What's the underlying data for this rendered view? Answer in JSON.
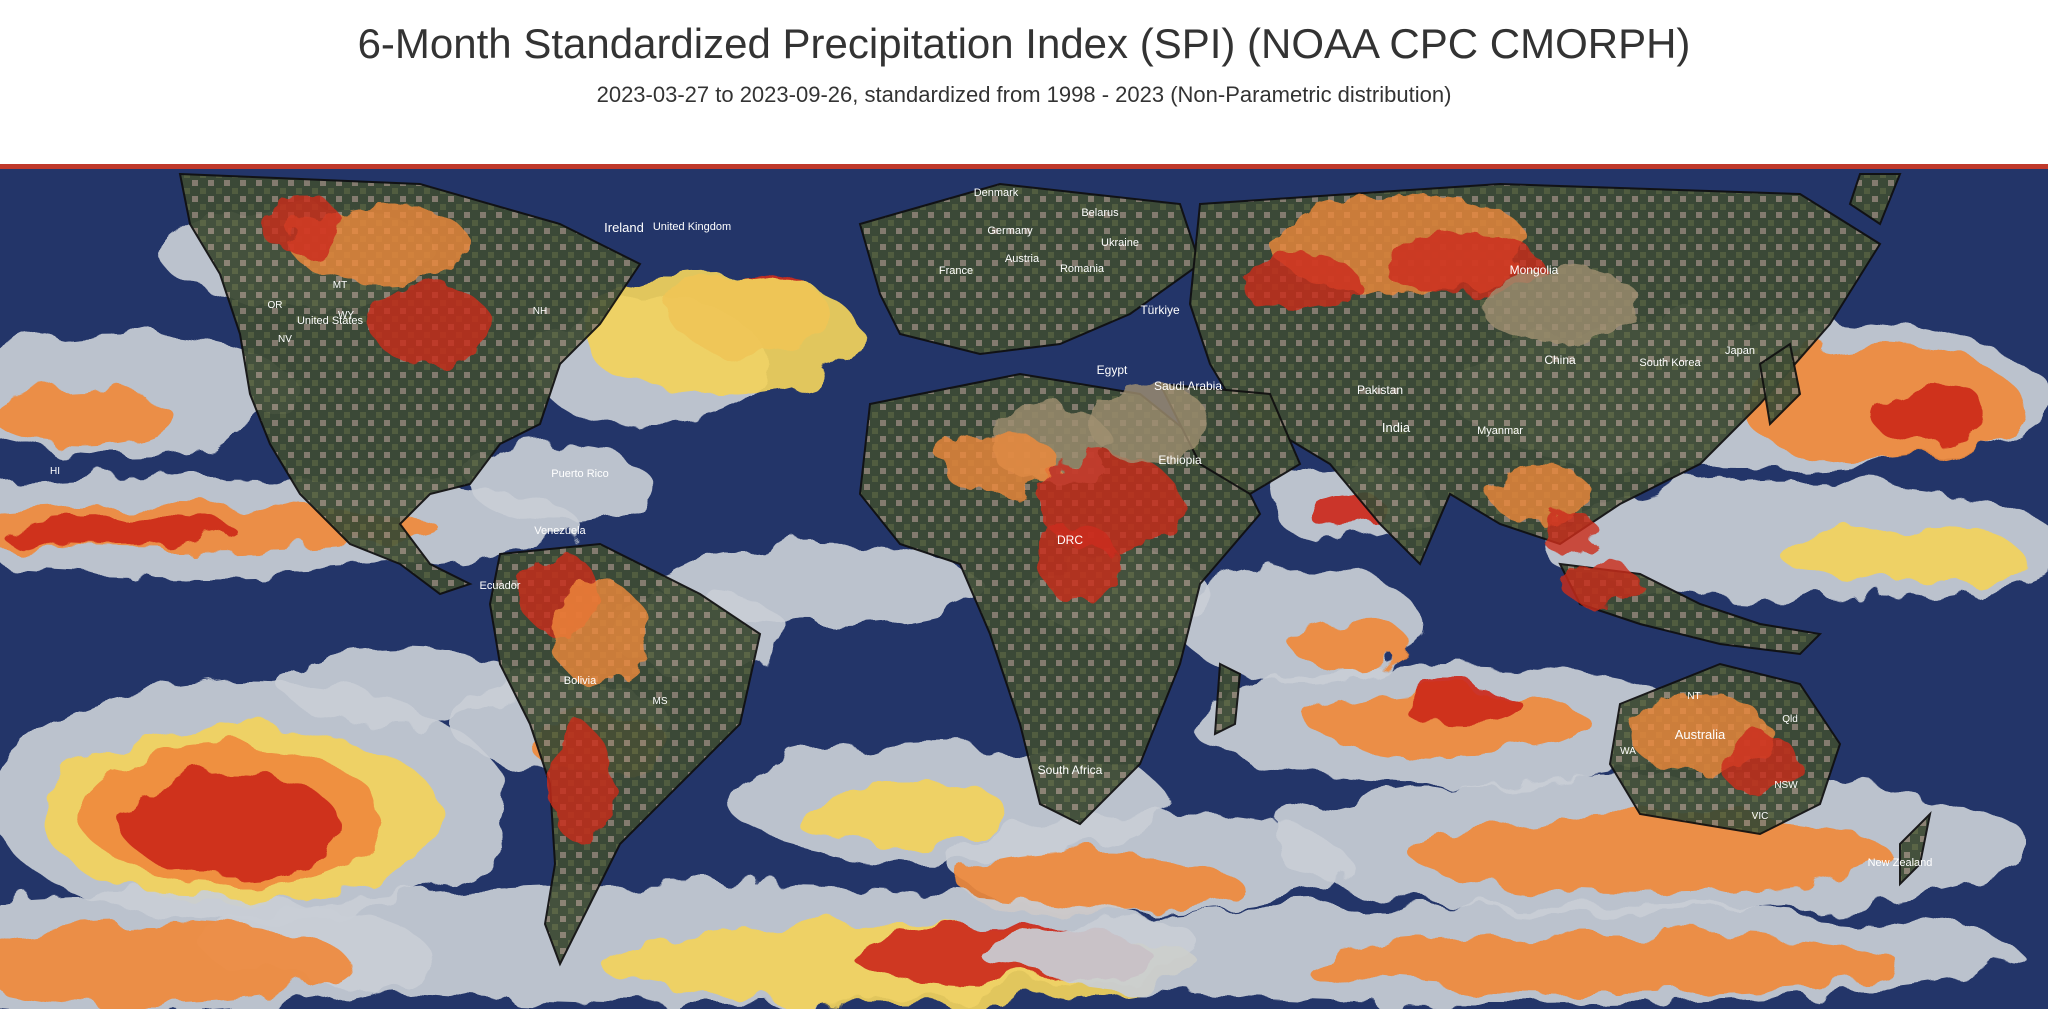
{
  "map": {
    "title": "6-Month Standardized Precipitation Index (SPI) (NOAA CPC CMORPH)",
    "subtitle": "2023-03-27 to 2023-09-26, standardized from 1998 - 2023 (Non-Parametric distribution)",
    "colors": {
      "ocean": "#233569",
      "ocean_dark": "#1c2a58",
      "land_green": "#3e4b35",
      "land_tan": "#a09070",
      "spi_light": "#c9ced6",
      "spi_yellow": "#f2d35c",
      "spi_orange": "#ef8a3c",
      "spi_red": "#cc2a1c",
      "top_bar": "#c0392b"
    },
    "labels": {
      "ireland": "Ireland",
      "united_kingdom": "United Kingdom",
      "denmark": "Denmark",
      "germany": "Germany",
      "austria": "Austria",
      "france": "France",
      "romania": "Romania",
      "belarus": "Belarus",
      "ukraine": "Ukraine",
      "turkiye": "Türkiye",
      "egypt": "Egypt",
      "saudi_arabia": "Saudi Arabia",
      "ethiopia": "Ethiopia",
      "drc": "DRC",
      "south_africa": "South Africa",
      "pakistan": "Pakistan",
      "india": "India",
      "myanmar": "Myanmar",
      "china": "China",
      "mongolia": "Mongolia",
      "south_korea": "South Korea",
      "japan": "Japan",
      "australia": "Australia",
      "wa": "WA",
      "nt": "NT",
      "qld": "Qld",
      "nsw": "NSW",
      "vic": "VIC",
      "new_zealand": "New Zealand",
      "united_states": "United States",
      "puerto_rico": "Puerto Rico",
      "venezuela": "Venezuela",
      "ecuador": "Ecuador",
      "bolivia": "Bolivia",
      "ms": "MS",
      "mt": "MT",
      "wy": "WY",
      "or": "OR",
      "nv": "NV",
      "nh": "NH",
      "hi": "HI"
    }
  }
}
